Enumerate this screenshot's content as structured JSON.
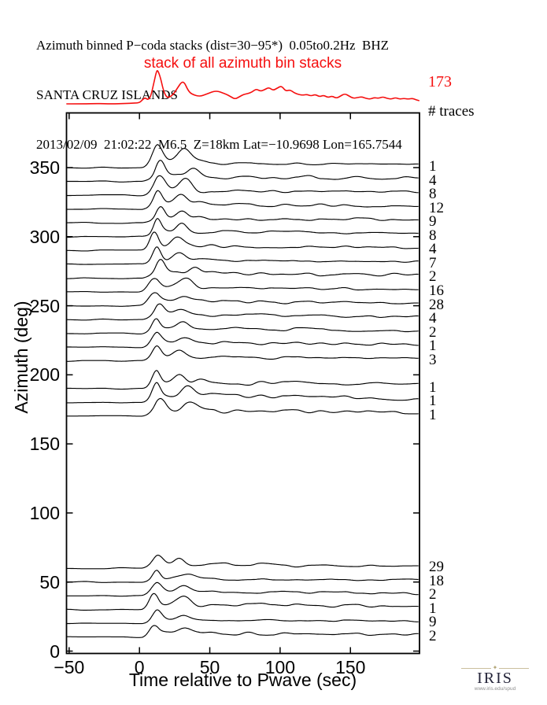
{
  "header": {
    "line1": "Azimuth binned P−coda stacks (dist=30−95*)  0.05to0.2Hz  BHZ",
    "line2": "SANTA CRUZ ISLANDS",
    "line3": "2013/02/09  21:02:22  M6.5  Z=18km Lat=−10.9698 Lon=165.7544"
  },
  "stack_plot": {
    "label": "stack of all azimuth bin stacks",
    "total_traces": "173",
    "traces_heading": "# traces",
    "color": "#f50f0f"
  },
  "axes": {
    "x_label": "Time relative to Pwave (sec)",
    "y_label": "Azimuth (deg)",
    "x_ticks": [
      -50,
      0,
      50,
      100,
      150
    ],
    "y_ticks": [
      0,
      50,
      100,
      150,
      200,
      250,
      300,
      350
    ]
  },
  "footer_logo": {
    "name": "IRIS",
    "url": "www.iris.edu/spud"
  },
  "chart_data": {
    "type": "line",
    "subtype": "seismogram-azimuth-bin-stacks",
    "title": "Azimuth binned P−coda stacks (dist=30−95*)  0.05to0.2Hz  BHZ",
    "event": {
      "region": "SANTA CRUZ ISLANDS",
      "date": "2013/02/09",
      "time": "21:02:22",
      "magnitude": "M6.5",
      "depth_km": 18,
      "lat": -10.9698,
      "lon": 165.7544
    },
    "xlabel": "Time relative to Pwave (sec)",
    "ylabel": "Azimuth (deg)",
    "xlim": [
      -52,
      199
    ],
    "ylim": [
      0,
      390
    ],
    "x_ticks": [
      -50,
      0,
      50,
      100,
      150
    ],
    "y_ticks": [
      0,
      50,
      100,
      150,
      200,
      250,
      300,
      350
    ],
    "grid": false,
    "trace_color": "#000000",
    "stack_of_all": {
      "n_traces": 173,
      "color": "#f50f0f",
      "points": [
        [
          -52,
          1
        ],
        [
          -40,
          1
        ],
        [
          -30,
          1.5
        ],
        [
          -20,
          1
        ],
        [
          -10,
          1.5
        ],
        [
          -4,
          2
        ],
        [
          0,
          2.5
        ],
        [
          2,
          6
        ],
        [
          4,
          9
        ],
        [
          6,
          6
        ],
        [
          8,
          10
        ],
        [
          10,
          26
        ],
        [
          12,
          42
        ],
        [
          13,
          44
        ],
        [
          15,
          34
        ],
        [
          17,
          18
        ],
        [
          19,
          10
        ],
        [
          21,
          9
        ],
        [
          24,
          13
        ],
        [
          27,
          21
        ],
        [
          30,
          29
        ],
        [
          32,
          28
        ],
        [
          34,
          20
        ],
        [
          36,
          15
        ],
        [
          38,
          13
        ],
        [
          41,
          11
        ],
        [
          44,
          11
        ],
        [
          47,
          13
        ],
        [
          50,
          15
        ],
        [
          53,
          17
        ],
        [
          56,
          17
        ],
        [
          59,
          15
        ],
        [
          62,
          13
        ],
        [
          65,
          10
        ],
        [
          68,
          7
        ],
        [
          71,
          10
        ],
        [
          74,
          13
        ],
        [
          77,
          14
        ],
        [
          80,
          16
        ],
        [
          83,
          20
        ],
        [
          86,
          17
        ],
        [
          89,
          19
        ],
        [
          92,
          22
        ],
        [
          95,
          18
        ],
        [
          98,
          21
        ],
        [
          101,
          24
        ],
        [
          104,
          17
        ],
        [
          107,
          19
        ],
        [
          110,
          15
        ],
        [
          113,
          13
        ],
        [
          116,
          12
        ],
        [
          119,
          13
        ],
        [
          122,
          11
        ],
        [
          125,
          13
        ],
        [
          128,
          10
        ],
        [
          131,
          12
        ],
        [
          134,
          9
        ],
        [
          137,
          11
        ],
        [
          140,
          8
        ],
        [
          143,
          11
        ],
        [
          146,
          14
        ],
        [
          149,
          11
        ],
        [
          152,
          8
        ],
        [
          155,
          9
        ],
        [
          158,
          10
        ],
        [
          161,
          8
        ],
        [
          164,
          7
        ],
        [
          167,
          9
        ],
        [
          170,
          8
        ],
        [
          173,
          10
        ],
        [
          176,
          8
        ],
        [
          179,
          7
        ],
        [
          182,
          9
        ],
        [
          185,
          7
        ],
        [
          188,
          8
        ],
        [
          191,
          7
        ],
        [
          194,
          8
        ],
        [
          197,
          6
        ],
        [
          199,
          5
        ]
      ]
    },
    "bins": [
      {
        "azimuth": 350,
        "n_traces": 1,
        "amp": 21,
        "coda": 11,
        "seed": 350
      },
      {
        "azimuth": 340,
        "n_traces": 4,
        "amp": 19,
        "coda": 11,
        "seed": 340
      },
      {
        "azimuth": 330,
        "n_traces": 8,
        "amp": 18,
        "coda": 10,
        "seed": 330
      },
      {
        "azimuth": 320,
        "n_traces": 12,
        "amp": 16,
        "coda": 10,
        "seed": 320
      },
      {
        "azimuth": 310,
        "n_traces": 9,
        "amp": 15,
        "coda": 10,
        "seed": 310
      },
      {
        "azimuth": 300,
        "n_traces": 8,
        "amp": 17,
        "coda": 10,
        "seed": 300
      },
      {
        "azimuth": 290,
        "n_traces": 4,
        "amp": 19,
        "coda": 9,
        "seed": 290
      },
      {
        "azimuth": 280,
        "n_traces": 7,
        "amp": 17,
        "coda": 9,
        "seed": 280
      },
      {
        "azimuth": 270,
        "n_traces": 2,
        "amp": 15,
        "coda": 10,
        "seed": 270
      },
      {
        "azimuth": 260,
        "n_traces": 16,
        "amp": 13,
        "coda": 9,
        "seed": 260
      },
      {
        "azimuth": 250,
        "n_traces": 28,
        "amp": 12,
        "coda": 9,
        "seed": 250
      },
      {
        "azimuth": 240,
        "n_traces": 4,
        "amp": 12,
        "coda": 10,
        "seed": 240
      },
      {
        "azimuth": 230,
        "n_traces": 2,
        "amp": 13,
        "coda": 10,
        "seed": 230
      },
      {
        "azimuth": 220,
        "n_traces": 1,
        "amp": 12,
        "coda": 10,
        "seed": 220
      },
      {
        "azimuth": 210,
        "n_traces": 3,
        "amp": 14,
        "coda": 9,
        "seed": 210
      },
      {
        "azimuth": 190,
        "n_traces": 1,
        "amp": 15,
        "coda": 14,
        "seed": 190
      },
      {
        "azimuth": 180,
        "n_traces": 1,
        "amp": 17,
        "coda": 15,
        "seed": 180
      },
      {
        "azimuth": 170,
        "n_traces": 1,
        "amp": 15,
        "coda": 14,
        "seed": 170
      },
      {
        "azimuth": 60,
        "n_traces": 29,
        "amp": 12,
        "coda": 8,
        "seed": 60
      },
      {
        "azimuth": 50,
        "n_traces": 18,
        "amp": 10,
        "coda": 7,
        "seed": 50
      },
      {
        "azimuth": 40,
        "n_traces": 2,
        "amp": 12,
        "coda": 9,
        "seed": 40
      },
      {
        "azimuth": 30,
        "n_traces": 1,
        "amp": 15,
        "coda": 12,
        "seed": 30
      },
      {
        "azimuth": 20,
        "n_traces": 9,
        "amp": 13,
        "coda": 8,
        "seed": 20
      },
      {
        "azimuth": 10,
        "n_traces": 2,
        "amp": 12,
        "coda": 9,
        "seed": 10
      }
    ]
  }
}
